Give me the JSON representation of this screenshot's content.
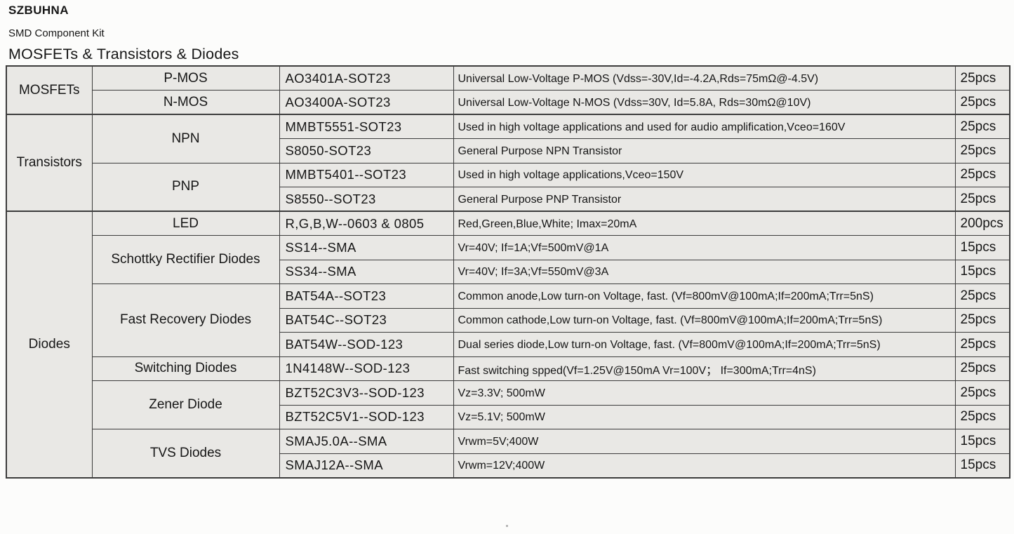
{
  "header": {
    "brand": "SZBUHNA",
    "subtitle": "SMD Component Kit",
    "table_title": "MOSFETs & Transistors & Diodes"
  },
  "colors": {
    "page_bg": "#fcfcfb",
    "category_cell_bg": "#a9a6a1",
    "data_cell_bg": "#e9e8e5",
    "border": "#3c3c3c",
    "text": "#161616"
  },
  "table": {
    "rows": [
      {
        "category": "MOSFETs",
        "category_span": 2,
        "type": "P-MOS",
        "type_span": 1,
        "part": "AO3401A-SOT23",
        "desc": "Universal Low-Voltage P-MOS (Vdss=-30V,Id=-4.2A,Rds=75mΩ@-4.5V)",
        "qty": "25pcs"
      },
      {
        "type": "N-MOS",
        "type_span": 1,
        "part": "AO3400A-SOT23",
        "desc": "Universal Low-Voltage N-MOS (Vdss=30V, Id=5.8A, Rds=30mΩ@10V)",
        "qty": "25pcs"
      },
      {
        "category": "Transistors",
        "category_span": 4,
        "type": "NPN",
        "type_span": 2,
        "part": "MMBT5551-SOT23",
        "desc": "Used in high voltage applications and used for audio amplification,Vceo=160V",
        "qty": "25pcs"
      },
      {
        "part": "S8050-SOT23",
        "desc": "General Purpose NPN Transistor",
        "qty": "25pcs"
      },
      {
        "type": "PNP",
        "type_span": 2,
        "part": "MMBT5401--SOT23",
        "desc": "Used in high voltage applications,Vceo=150V",
        "qty": "25pcs"
      },
      {
        "part": "S8550--SOT23",
        "desc": "General Purpose PNP Transistor",
        "qty": "25pcs"
      },
      {
        "category": "Diodes",
        "category_span": 11,
        "type": "LED",
        "type_span": 1,
        "part": "R,G,B,W--0603 & 0805",
        "desc": "Red,Green,Blue,White; Imax=20mA",
        "qty": "200pcs"
      },
      {
        "type": "Schottky Rectifier Diodes",
        "type_span": 2,
        "part": "SS14--SMA",
        "desc": "Vr=40V; If=1A;Vf=500mV@1A",
        "qty": "15pcs"
      },
      {
        "part": "SS34--SMA",
        "desc": "Vr=40V; If=3A;Vf=550mV@3A",
        "qty": "15pcs"
      },
      {
        "type": "Fast Recovery Diodes",
        "type_span": 3,
        "part": "BAT54A--SOT23",
        "desc": "Common anode,Low turn-on Voltage, fast. (Vf=800mV@100mA;If=200mA;Trr=5nS)",
        "qty": "25pcs"
      },
      {
        "part": "BAT54C--SOT23",
        "desc": "Common cathode,Low turn-on Voltage, fast. (Vf=800mV@100mA;If=200mA;Trr=5nS)",
        "qty": "25pcs"
      },
      {
        "part": "BAT54W--SOD-123",
        "desc": "Dual series diode,Low turn-on Voltage, fast. (Vf=800mV@100mA;If=200mA;Trr=5nS)",
        "qty": "25pcs"
      },
      {
        "type": "Switching Diodes",
        "type_span": 1,
        "part": "1N4148W--SOD-123",
        "desc": "Fast switching spped(Vf=1.25V@150mA Vr=100V；  If=300mA;Trr=4nS)",
        "qty": "25pcs"
      },
      {
        "type": "Zener Diode",
        "type_span": 2,
        "part": "BZT52C3V3--SOD-123",
        "desc": "Vz=3.3V; 500mW",
        "qty": "25pcs"
      },
      {
        "part": "BZT52C5V1--SOD-123",
        "desc": "Vz=5.1V; 500mW",
        "qty": "25pcs"
      },
      {
        "type": "TVS Diodes",
        "type_span": 2,
        "part": "SMAJ5.0A--SMA",
        "desc": "Vrwm=5V;400W",
        "qty": "15pcs"
      },
      {
        "part": "SMAJ12A--SMA",
        "desc": "Vrwm=12V;400W",
        "qty": "15pcs"
      }
    ]
  }
}
